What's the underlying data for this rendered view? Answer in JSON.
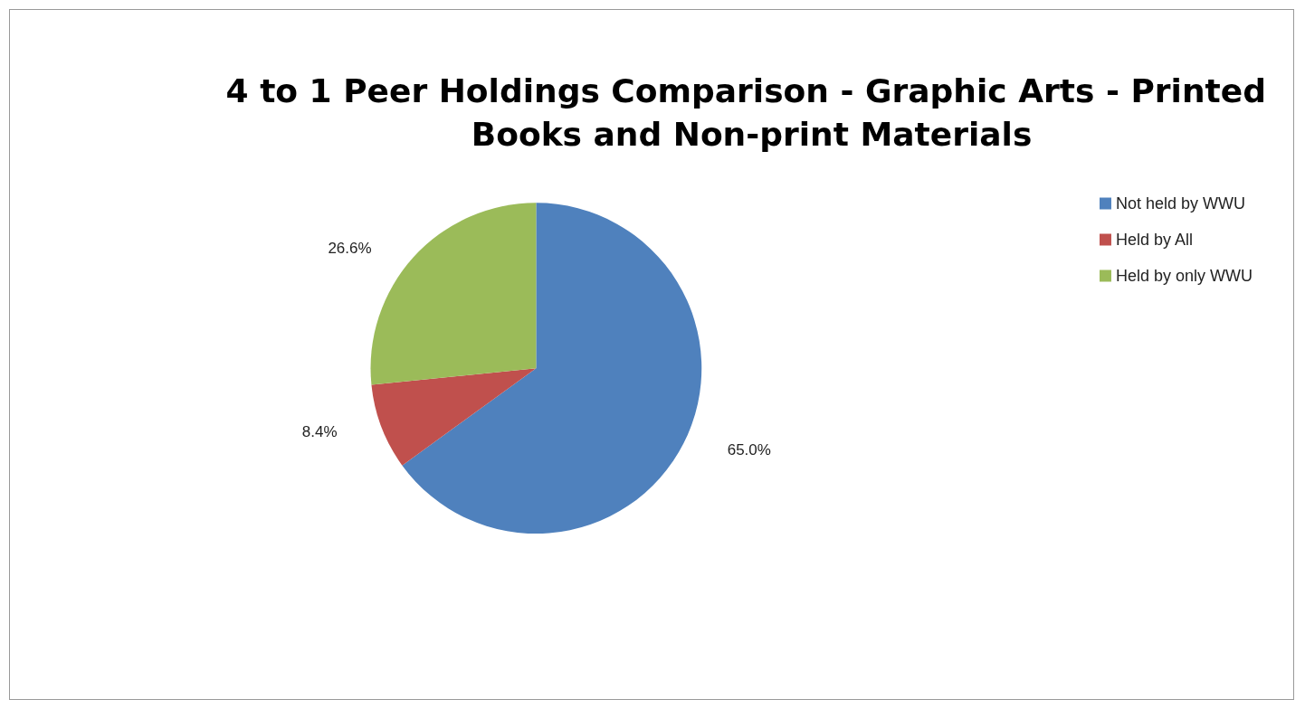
{
  "chart_data": {
    "type": "pie",
    "title": "4 to 1 Peer Holdings Comparison - Graphic Arts - Printed Books and Non-print Materials",
    "categories": [
      "Not held by WWU",
      "Held by All",
      "Held by only WWU"
    ],
    "values": [
      65.0,
      8.4,
      26.6
    ],
    "colors": [
      "#4f81bd",
      "#c0504d",
      "#9bbb59"
    ],
    "value_labels": [
      "65.0%",
      "8.4%",
      "26.6%"
    ],
    "legend": "right"
  }
}
